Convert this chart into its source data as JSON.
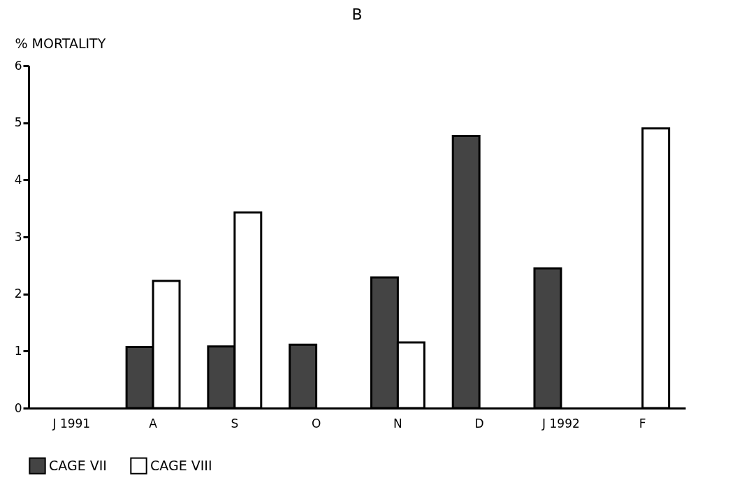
{
  "chart_data": {
    "type": "bar",
    "title": "B",
    "ylabel": "% MORTALITY",
    "categories": [
      "J 1991",
      "A",
      "S",
      "O",
      "N",
      "D",
      "J 1992",
      "F"
    ],
    "series": [
      {
        "name": "CAGE VII",
        "color": "#444444",
        "values": [
          null,
          1.07,
          1.08,
          1.11,
          2.29,
          4.77,
          2.45,
          null
        ]
      },
      {
        "name": "CAGE VIII",
        "color": "#ffffff",
        "values": [
          null,
          2.23,
          3.43,
          null,
          1.15,
          null,
          null,
          4.9
        ]
      }
    ],
    "ylim": [
      0,
      6
    ],
    "yticks": [
      0,
      1,
      2,
      3,
      4,
      5,
      6
    ],
    "grid": false,
    "legend": "bottom"
  }
}
